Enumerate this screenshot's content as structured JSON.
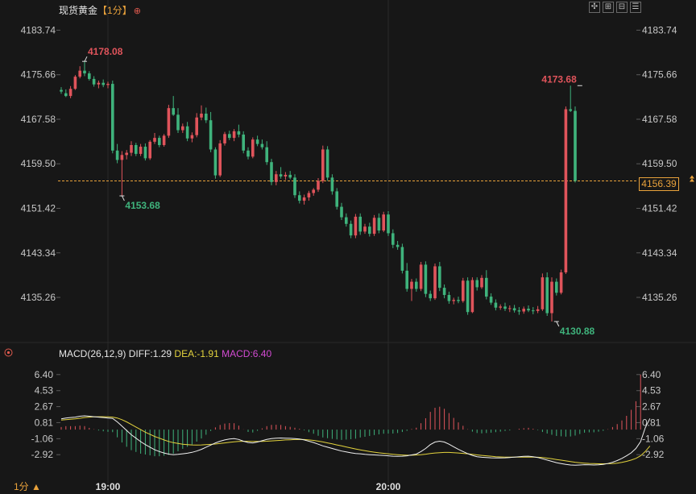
{
  "header": {
    "symbol": "现货黄金",
    "timeframe": "【1分】",
    "add_icon": "plus-circle-icon"
  },
  "toolbar": {
    "icons": [
      "zoom-fit-icon",
      "zoom-in-icon",
      "zoom-out-icon",
      "settings-icon"
    ]
  },
  "macd_header": {
    "name": "MACD(26,12,9)",
    "diff": "DIFF:1.29",
    "dea": "DEA:-1.91",
    "macd": "MACD:6.40"
  },
  "footer": {
    "period": "1分",
    "period_icon": "triangle-up-icon"
  },
  "colors": {
    "up": "#e0545b",
    "down": "#3fb37c",
    "diff_line": "#f0f0f0",
    "dea_line": "#e3d33d",
    "current_price": "#e9a23b",
    "background": "#171717"
  },
  "chart_data": [
    {
      "type": "candlestick",
      "title": "现货黄金",
      "y_ticks": [
        "4183.74",
        "4175.66",
        "4167.58",
        "4159.50",
        "4151.42",
        "4143.34",
        "4135.26"
      ],
      "ylim": [
        4130.0,
        4186.0
      ],
      "x_ticks": [
        {
          "label": "19:00",
          "index": 10
        },
        {
          "label": "20:00",
          "index": 70
        }
      ],
      "current_price": "4156.39",
      "annotations": {
        "high_1": {
          "label": "4178.08",
          "index": 5,
          "value": 4178.08
        },
        "low_1": {
          "label": "4153.68",
          "index": 13,
          "value": 4153.68
        },
        "high_2": {
          "label": "4173.68",
          "index": 111,
          "value": 4173.68
        },
        "low_2": {
          "label": "4130.88",
          "index": 106,
          "value": 4130.88
        }
      },
      "candles": [
        [
          4172.9,
          4173.4,
          4172.2,
          4172.6
        ],
        [
          4172.3,
          4173.0,
          4171.6,
          4171.8
        ],
        [
          4171.8,
          4173.6,
          4171.4,
          4173.1
        ],
        [
          4173.1,
          4175.6,
          4172.9,
          4175.3
        ],
        [
          4175.3,
          4177.2,
          4175.0,
          4176.4
        ],
        [
          4176.4,
          4178.08,
          4175.4,
          4175.9
        ],
        [
          4175.9,
          4176.3,
          4174.6,
          4174.9
        ],
        [
          4174.9,
          4175.4,
          4173.5,
          4173.9
        ],
        [
          4173.9,
          4174.6,
          4173.2,
          4174.2
        ],
        [
          4174.2,
          4174.8,
          4173.4,
          4173.8
        ],
        [
          4173.8,
          4174.4,
          4173.2,
          4174.0
        ],
        [
          4174.0,
          4174.6,
          4161.4,
          4161.9
        ],
        [
          4161.9,
          4163.1,
          4159.6,
          4160.2
        ],
        [
          4160.2,
          4161.8,
          4153.68,
          4161.1
        ],
        [
          4161.1,
          4162.0,
          4160.3,
          4161.5
        ],
        [
          4161.5,
          4163.6,
          4160.9,
          4162.9
        ],
        [
          4162.9,
          4163.3,
          4160.9,
          4161.3
        ],
        [
          4161.3,
          4163.1,
          4160.9,
          4162.6
        ],
        [
          4162.6,
          4163.2,
          4160.1,
          4160.5
        ],
        [
          4160.5,
          4163.8,
          4160.2,
          4163.5
        ],
        [
          4163.5,
          4165.1,
          4163.1,
          4164.2
        ],
        [
          4164.2,
          4164.6,
          4162.5,
          4162.9
        ],
        [
          4162.9,
          4164.9,
          4162.6,
          4164.6
        ],
        [
          4164.6,
          4170.2,
          4164.2,
          4169.6
        ],
        [
          4169.6,
          4171.8,
          4168.2,
          4168.4
        ],
        [
          4168.4,
          4169.6,
          4165.1,
          4165.6
        ],
        [
          4165.6,
          4166.8,
          4165.1,
          4166.3
        ],
        [
          4166.3,
          4167.1,
          4163.6,
          4164.1
        ],
        [
          4164.1,
          4165.2,
          4163.4,
          4164.7
        ],
        [
          4164.7,
          4168.7,
          4164.3,
          4167.9
        ],
        [
          4167.9,
          4170.1,
          4167.4,
          4168.6
        ],
        [
          4168.6,
          4169.7,
          4166.9,
          4167.4
        ],
        [
          4167.4,
          4168.9,
          4161.6,
          4162.1
        ],
        [
          4162.1,
          4162.5,
          4156.8,
          4157.4
        ],
        [
          4157.4,
          4163.8,
          4157.1,
          4163.2
        ],
        [
          4163.2,
          4165.3,
          4162.8,
          4164.9
        ],
        [
          4164.9,
          4165.5,
          4163.8,
          4164.2
        ],
        [
          4164.2,
          4165.8,
          4163.6,
          4165.4
        ],
        [
          4165.4,
          4166.6,
          4164.3,
          4164.8
        ],
        [
          4164.8,
          4165.4,
          4161.4,
          4161.9
        ],
        [
          4161.9,
          4162.5,
          4160.3,
          4160.8
        ],
        [
          4160.8,
          4164.3,
          4160.5,
          4163.9
        ],
        [
          4163.9,
          4164.6,
          4162.7,
          4163.1
        ],
        [
          4163.1,
          4163.9,
          4162.1,
          4162.5
        ],
        [
          4162.5,
          4163.6,
          4159.3,
          4159.8
        ],
        [
          4159.8,
          4160.4,
          4155.6,
          4156.2
        ],
        [
          4156.2,
          4158.2,
          4155.6,
          4157.6
        ],
        [
          4157.6,
          4158.9,
          4156.8,
          4157.2
        ],
        [
          4157.2,
          4158.0,
          4156.6,
          4157.5
        ],
        [
          4157.5,
          4158.2,
          4156.7,
          4157.0
        ],
        [
          4157.0,
          4157.6,
          4153.3,
          4153.8
        ],
        [
          4153.8,
          4154.5,
          4152.3,
          4152.8
        ],
        [
          4152.8,
          4153.9,
          4152.1,
          4153.4
        ],
        [
          4153.4,
          4154.6,
          4152.8,
          4154.2
        ],
        [
          4154.2,
          4155.1,
          4153.7,
          4154.8
        ],
        [
          4154.8,
          4156.9,
          4154.4,
          4156.4
        ],
        [
          4156.4,
          4162.8,
          4156.0,
          4162.1
        ],
        [
          4162.1,
          4162.7,
          4156.4,
          4157.0
        ],
        [
          4157.0,
          4157.6,
          4153.9,
          4154.5
        ],
        [
          4154.5,
          4155.1,
          4151.2,
          4151.7
        ],
        [
          4151.7,
          4152.4,
          4149.3,
          4149.8
        ],
        [
          4149.8,
          4150.5,
          4148.1,
          4148.6
        ],
        [
          4148.6,
          4149.2,
          4146.0,
          4146.5
        ],
        [
          4146.5,
          4150.4,
          4146.0,
          4149.9
        ],
        [
          4149.9,
          4150.5,
          4146.6,
          4147.2
        ],
        [
          4147.2,
          4148.6,
          4146.8,
          4148.1
        ],
        [
          4148.1,
          4148.8,
          4146.3,
          4146.8
        ],
        [
          4146.8,
          4150.2,
          4146.4,
          4149.7
        ],
        [
          4149.7,
          4150.5,
          4146.9,
          4147.4
        ],
        [
          4147.4,
          4150.8,
          4147.1,
          4150.3
        ],
        [
          4150.3,
          4150.9,
          4146.4,
          4146.9
        ],
        [
          4146.9,
          4147.6,
          4144.2,
          4144.8
        ],
        [
          4144.8,
          4145.5,
          4143.9,
          4144.4
        ],
        [
          4144.4,
          4145.0,
          4139.6,
          4140.1
        ],
        [
          4140.1,
          4141.5,
          4136.3,
          4136.8
        ],
        [
          4136.8,
          4138.6,
          4134.6,
          4138.1
        ],
        [
          4138.1,
          4138.7,
          4136.3,
          4136.8
        ],
        [
          4136.8,
          4141.7,
          4136.4,
          4141.2
        ],
        [
          4141.2,
          4141.8,
          4135.3,
          4135.9
        ],
        [
          4135.9,
          4136.5,
          4134.6,
          4135.1
        ],
        [
          4135.1,
          4141.4,
          4134.8,
          4140.9
        ],
        [
          4140.9,
          4141.7,
          4136.4,
          4137.0
        ],
        [
          4137.0,
          4137.6,
          4135.1,
          4135.7
        ],
        [
          4135.7,
          4136.3,
          4134.1,
          4134.6
        ],
        [
          4134.6,
          4135.2,
          4134.0,
          4134.8
        ],
        [
          4134.8,
          4135.4,
          4134.2,
          4134.6
        ],
        [
          4134.6,
          4138.8,
          4134.3,
          4138.3
        ],
        [
          4138.3,
          4138.9,
          4132.1,
          4132.6
        ],
        [
          4132.6,
          4138.9,
          4132.4,
          4138.4
        ],
        [
          4138.4,
          4138.9,
          4136.5,
          4137.1
        ],
        [
          4137.1,
          4139.3,
          4136.8,
          4138.8
        ],
        [
          4138.8,
          4140.2,
          4134.9,
          4135.4
        ],
        [
          4135.4,
          4136.0,
          4133.9,
          4134.3
        ],
        [
          4134.3,
          4134.9,
          4132.9,
          4133.4
        ],
        [
          4133.4,
          4134.0,
          4133.0,
          4133.6
        ],
        [
          4133.6,
          4134.3,
          4132.8,
          4133.2
        ],
        [
          4133.2,
          4133.8,
          4132.6,
          4133.3
        ],
        [
          4133.3,
          4133.9,
          4132.5,
          4132.9
        ],
        [
          4132.9,
          4133.5,
          4132.1,
          4132.7
        ],
        [
          4132.7,
          4133.6,
          4132.3,
          4133.2
        ],
        [
          4133.2,
          4133.8,
          4132.6,
          4132.9
        ],
        [
          4132.9,
          4133.5,
          4132.2,
          4132.8
        ],
        [
          4132.8,
          4133.7,
          4132.4,
          4133.1
        ],
        [
          4133.1,
          4139.6,
          4132.8,
          4138.9
        ],
        [
          4138.9,
          4139.8,
          4131.9,
          4132.4
        ],
        [
          4132.4,
          4138.9,
          4130.88,
          4138.1
        ],
        [
          4138.1,
          4138.7,
          4135.6,
          4136.1
        ],
        [
          4136.1,
          4140.3,
          4135.8,
          4139.8
        ],
        [
          4139.8,
          4169.9,
          4139.5,
          4169.4
        ],
        [
          4169.4,
          4173.68,
          4168.9,
          4169.1
        ],
        [
          4169.1,
          4169.9,
          4156.1,
          4156.39
        ]
      ]
    },
    {
      "type": "macd",
      "title": "MACD(26,12,9)",
      "y_ticks": [
        "6.40",
        "4.53",
        "2.67",
        "0.81",
        "-1.06",
        "-2.92"
      ],
      "ylim": [
        -4.4,
        7.6
      ],
      "diff": [
        1.25,
        1.35,
        1.4,
        1.45,
        1.55,
        1.6,
        1.55,
        1.5,
        1.45,
        1.4,
        1.35,
        1.3,
        0.9,
        0.4,
        -0.1,
        -0.6,
        -1.0,
        -1.4,
        -1.75,
        -2.05,
        -2.35,
        -2.55,
        -2.72,
        -2.85,
        -2.92,
        -2.88,
        -2.82,
        -2.75,
        -2.65,
        -2.5,
        -2.3,
        -2.05,
        -1.8,
        -1.55,
        -1.35,
        -1.2,
        -1.1,
        -1.05,
        -1.15,
        -1.35,
        -1.5,
        -1.55,
        -1.45,
        -1.3,
        -1.15,
        -1.05,
        -1.0,
        -0.98,
        -1.0,
        -1.02,
        -1.05,
        -1.1,
        -1.2,
        -1.35,
        -1.5,
        -1.7,
        -1.9,
        -2.05,
        -2.2,
        -2.35,
        -2.5,
        -2.6,
        -2.7,
        -2.78,
        -2.82,
        -2.88,
        -2.92,
        -2.95,
        -2.98,
        -3.0,
        -3.05,
        -3.1,
        -3.12,
        -3.1,
        -3.05,
        -2.95,
        -2.85,
        -2.55,
        -2.2,
        -1.75,
        -1.45,
        -1.35,
        -1.45,
        -1.7,
        -2.0,
        -2.3,
        -2.55,
        -2.8,
        -3.0,
        -3.15,
        -3.22,
        -3.25,
        -3.28,
        -3.3,
        -3.3,
        -3.28,
        -3.25,
        -3.2,
        -3.15,
        -3.12,
        -3.1,
        -3.15,
        -3.25,
        -3.4,
        -3.55,
        -3.7,
        -3.85,
        -3.95,
        -4.05,
        -4.12,
        -4.15,
        -4.12,
        -4.08,
        -4.1,
        -4.12,
        -4.1,
        -4.05,
        -3.95,
        -3.8,
        -3.6,
        -3.35,
        -3.05,
        -2.7,
        -2.2,
        -1.4,
        0.2,
        1.29
      ],
      "dea": [
        1.1,
        1.15,
        1.2,
        1.25,
        1.32,
        1.4,
        1.45,
        1.48,
        1.5,
        1.5,
        1.48,
        1.45,
        1.35,
        1.15,
        0.9,
        0.6,
        0.3,
        0.0,
        -0.3,
        -0.55,
        -0.8,
        -1.0,
        -1.2,
        -1.38,
        -1.52,
        -1.62,
        -1.7,
        -1.75,
        -1.78,
        -1.8,
        -1.78,
        -1.75,
        -1.72,
        -1.68,
        -1.62,
        -1.55,
        -1.48,
        -1.42,
        -1.38,
        -1.36,
        -1.36,
        -1.38,
        -1.38,
        -1.37,
        -1.35,
        -1.32,
        -1.28,
        -1.25,
        -1.2,
        -1.18,
        -1.16,
        -1.15,
        -1.16,
        -1.2,
        -1.26,
        -1.34,
        -1.44,
        -1.55,
        -1.66,
        -1.78,
        -1.9,
        -2.02,
        -2.14,
        -2.25,
        -2.36,
        -2.46,
        -2.55,
        -2.63,
        -2.7,
        -2.76,
        -2.82,
        -2.87,
        -2.92,
        -2.96,
        -2.98,
        -2.98,
        -2.96,
        -2.92,
        -2.86,
        -2.78,
        -2.72,
        -2.68,
        -2.66,
        -2.66,
        -2.68,
        -2.72,
        -2.77,
        -2.82,
        -2.88,
        -2.95,
        -3.0,
        -3.05,
        -3.1,
        -3.15,
        -3.18,
        -3.2,
        -3.2,
        -3.2,
        -3.2,
        -3.2,
        -3.2,
        -3.2,
        -3.22,
        -3.26,
        -3.32,
        -3.4,
        -3.48,
        -3.56,
        -3.64,
        -3.72,
        -3.8,
        -3.86,
        -3.9,
        -3.94,
        -3.96,
        -3.98,
        -3.98,
        -3.97,
        -3.95,
        -3.9,
        -3.82,
        -3.7,
        -3.55,
        -3.35,
        -3.05,
        -2.55,
        -1.91
      ],
      "histogram": [
        0.3,
        0.4,
        0.4,
        0.4,
        0.46,
        0.4,
        0.2,
        0.04,
        -0.1,
        -0.2,
        -0.26,
        -0.3,
        -0.9,
        -1.5,
        -2.0,
        -2.4,
        -2.6,
        -2.8,
        -2.9,
        -3.0,
        -3.1,
        -3.1,
        -3.04,
        -2.94,
        -2.8,
        -2.52,
        -2.24,
        -2.0,
        -1.74,
        -1.4,
        -1.04,
        -0.6,
        -0.16,
        0.26,
        0.54,
        0.7,
        0.76,
        0.74,
        0.46,
        0.02,
        -0.28,
        -0.34,
        -0.14,
        0.14,
        0.4,
        0.54,
        0.56,
        0.54,
        0.4,
        0.32,
        0.22,
        0.1,
        -0.08,
        -0.3,
        -0.48,
        -0.72,
        -0.92,
        -1.0,
        -1.08,
        -1.14,
        -1.2,
        -1.16,
        -1.12,
        -1.06,
        -0.92,
        -0.84,
        -0.74,
        -0.64,
        -0.56,
        -0.48,
        -0.46,
        -0.46,
        -0.4,
        -0.28,
        -0.14,
        0.06,
        0.22,
        0.74,
        1.32,
        2.06,
        2.54,
        2.66,
        2.42,
        1.92,
        1.36,
        0.84,
        0.44,
        0.04,
        -0.24,
        -0.4,
        -0.44,
        -0.4,
        -0.36,
        -0.3,
        -0.24,
        -0.16,
        -0.1,
        0.0,
        0.1,
        0.16,
        0.2,
        0.1,
        -0.06,
        -0.28,
        -0.46,
        -0.6,
        -0.74,
        -0.78,
        -0.82,
        -0.8,
        -0.7,
        -0.52,
        -0.36,
        -0.32,
        -0.32,
        -0.24,
        -0.14,
        0.04,
        0.3,
        0.64,
        1.06,
        1.6,
        2.3,
        3.3,
        6.4
      ]
    }
  ]
}
